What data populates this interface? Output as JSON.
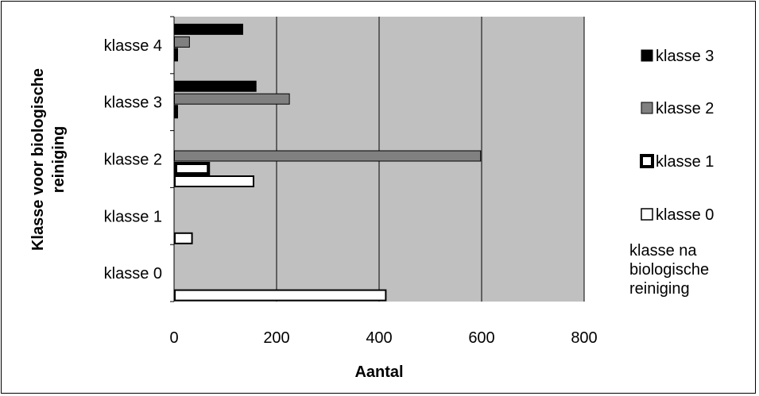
{
  "chart_data": {
    "type": "bar",
    "orientation": "horizontal",
    "xlabel": "Aantal",
    "ylabel": "Klasse voor biologische reiniging",
    "xlim": [
      0,
      800
    ],
    "xticks": [
      0,
      200,
      400,
      600,
      800
    ],
    "grid": true,
    "plot_background": "#c0c0c0",
    "legend_placement": "right",
    "legend_title": "klasse na biologische reiniging",
    "categories": [
      "klasse 4",
      "klasse 3",
      "klasse 2",
      "klasse 1",
      "klasse 0"
    ],
    "series": [
      {
        "name": "klasse 3",
        "style": "solid-black",
        "values": [
          134,
          160,
          0,
          0,
          0
        ]
      },
      {
        "name": "klasse 2",
        "style": "gray",
        "values": [
          30,
          225,
          598,
          0,
          0
        ]
      },
      {
        "name": "klasse 1",
        "style": "thick-outline",
        "values": [
          3,
          2,
          67,
          0,
          0
        ]
      },
      {
        "name": "klasse 0",
        "style": "white",
        "values": [
          0,
          0,
          155,
          35,
          413
        ]
      }
    ],
    "colors": {
      "solid-black": "#000000",
      "gray": "#808080",
      "white": "#ffffff"
    }
  }
}
